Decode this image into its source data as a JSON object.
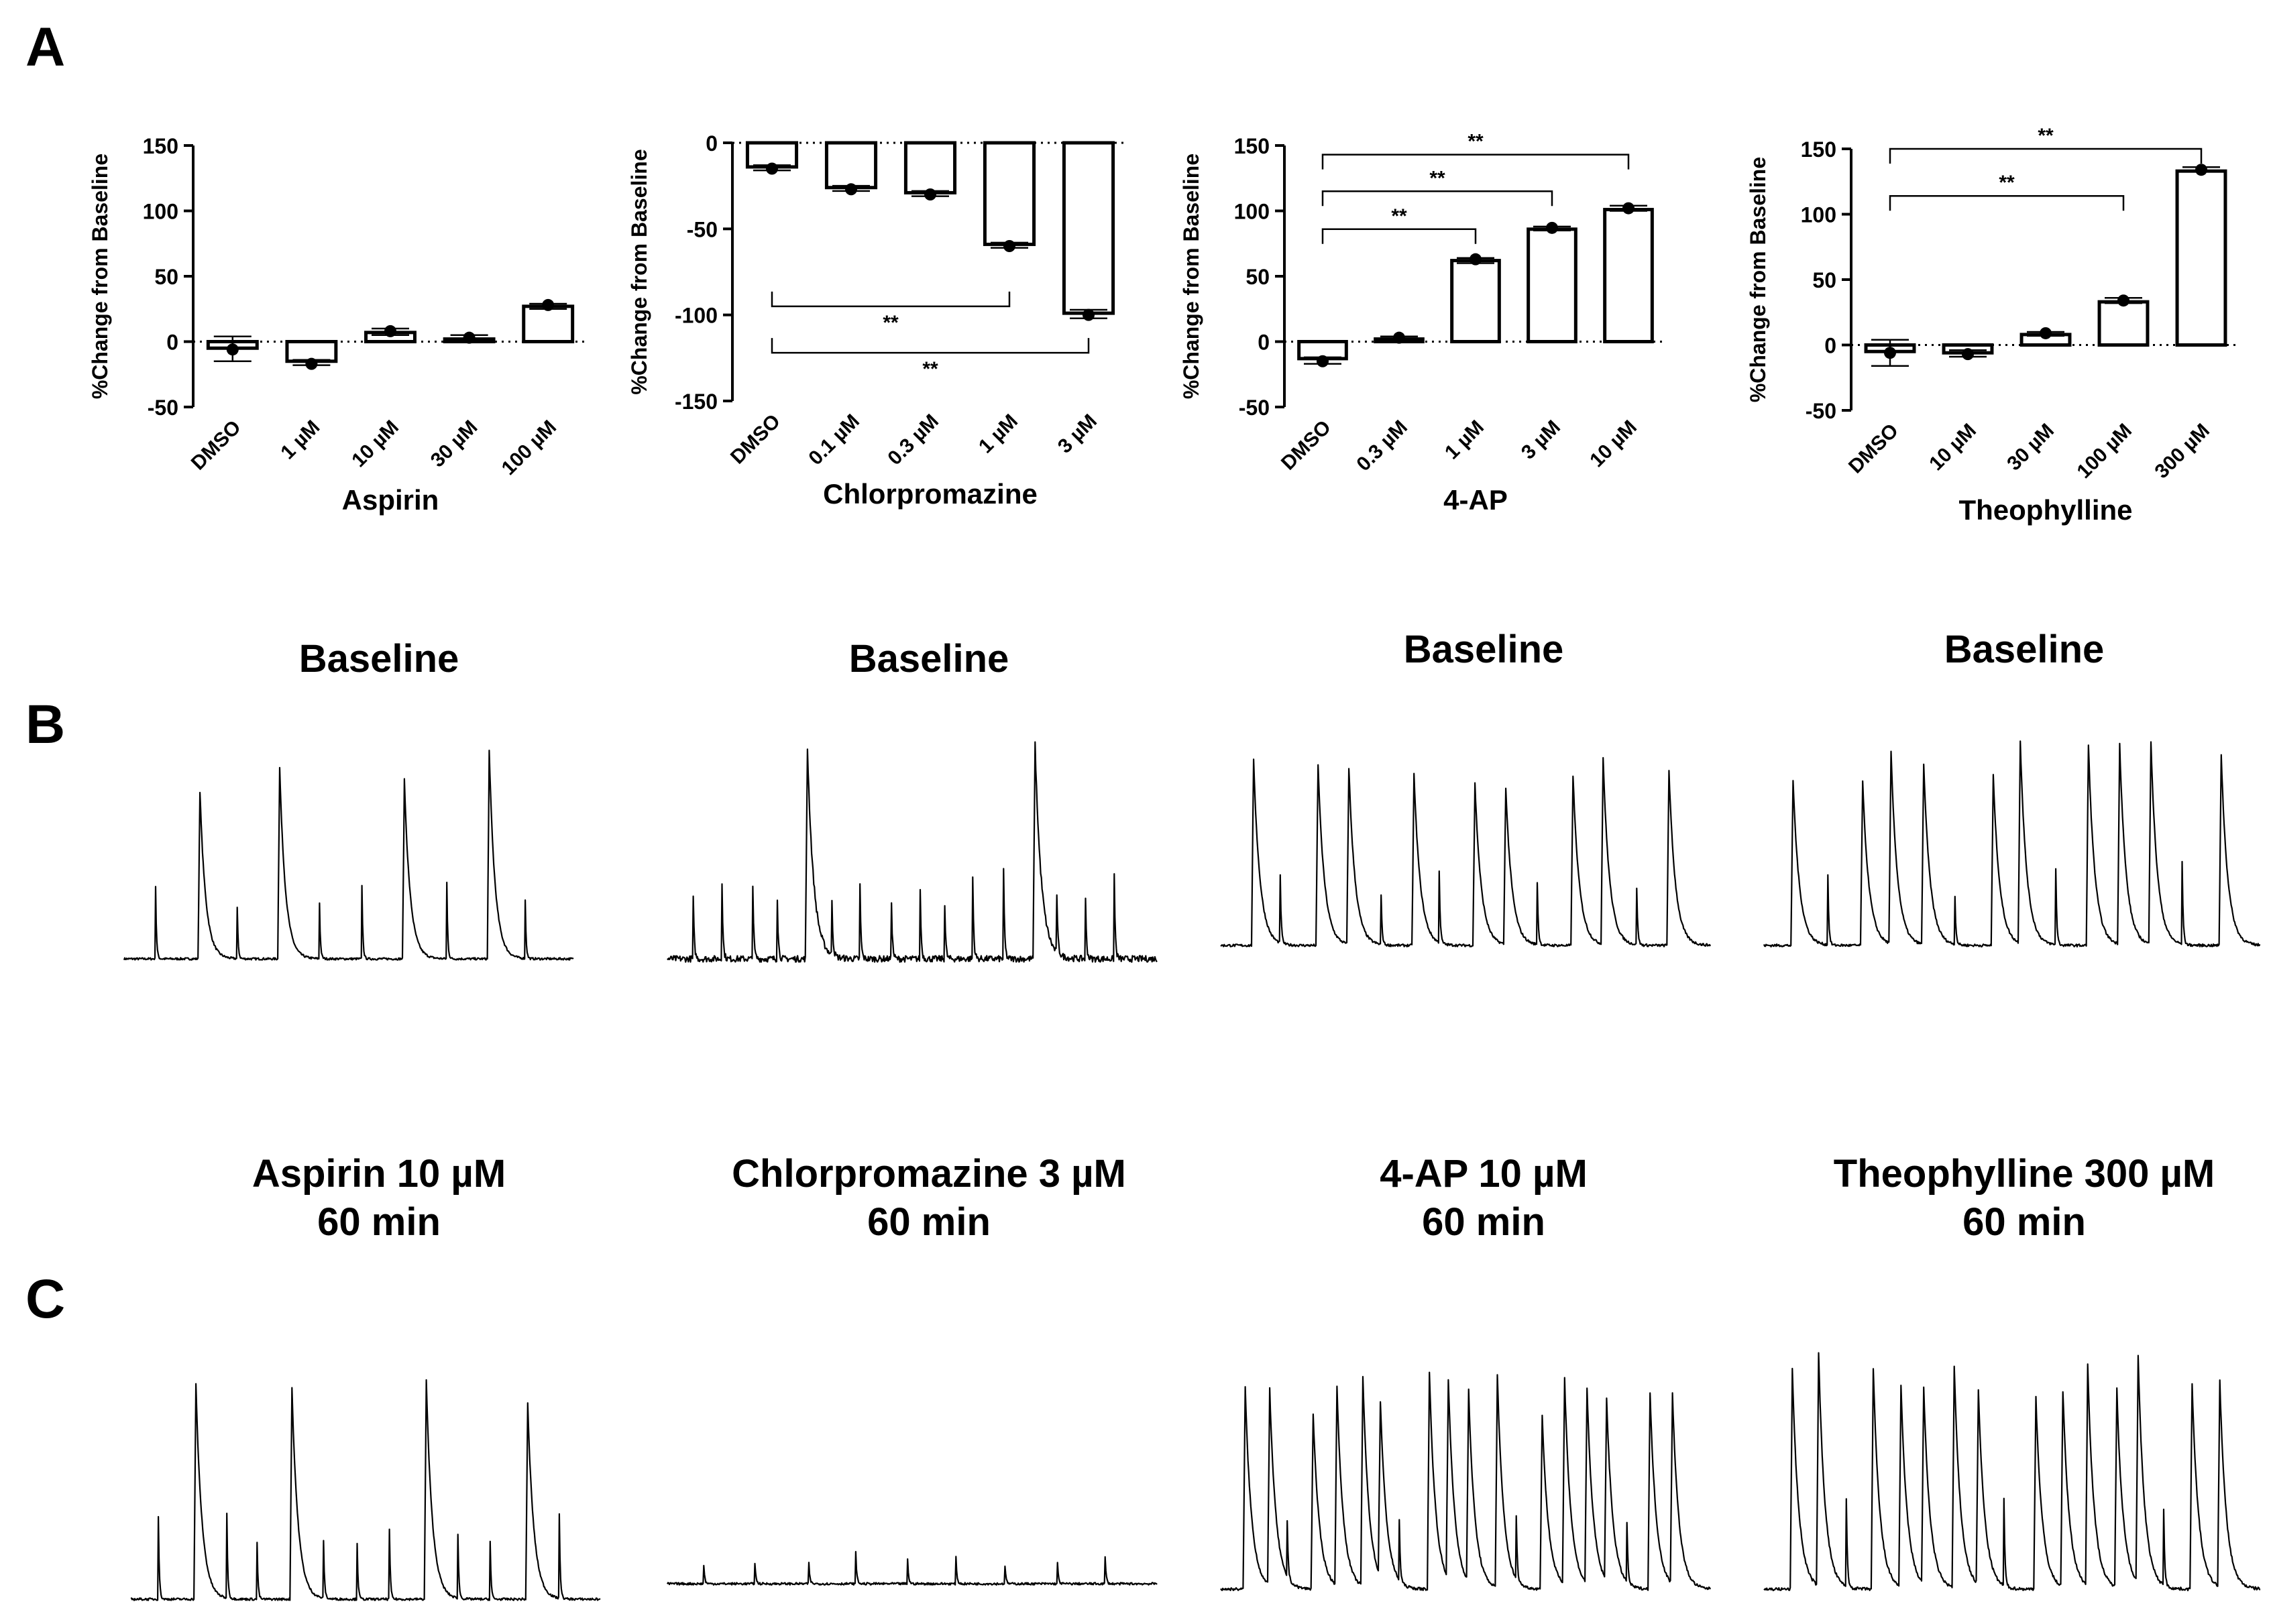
{
  "panels": {
    "A": "A",
    "B": "B",
    "C": "C"
  },
  "ylabel": "%Change from Baseline",
  "sig_label": "**",
  "colors": {
    "ink": "#000000",
    "background": "#ffffff"
  },
  "chart_data": [
    {
      "type": "bar",
      "title": "",
      "xlabel": "Aspirin",
      "ylabel": "%Change from Baseline",
      "categories": [
        "DMSO",
        "1 µM",
        "10 µM",
        "30 µM",
        "100 µM"
      ],
      "values": [
        -5,
        -15,
        7,
        2,
        27
      ],
      "points": [
        -6,
        -17,
        8,
        3,
        28
      ],
      "errors": [
        [
          -15,
          4
        ],
        [
          -18,
          -14
        ],
        [
          5,
          10
        ],
        [
          0,
          5
        ],
        [
          25,
          29
        ]
      ],
      "ylim": [
        -50,
        150
      ],
      "yticks": [
        -50,
        0,
        50,
        100,
        150
      ],
      "significance": []
    },
    {
      "type": "bar",
      "title": "",
      "xlabel": "Chlorpromazine",
      "ylabel": "%Change from Baseline",
      "categories": [
        "DMSO",
        "0.1 µM",
        "0.3 µM",
        "1 µM",
        "3 µM"
      ],
      "values": [
        -14,
        -26,
        -29,
        -59,
        -99
      ],
      "points": [
        -15,
        -27,
        -30,
        -60,
        -100
      ],
      "errors": [
        [
          -16,
          -13
        ],
        [
          -28,
          -25
        ],
        [
          -31,
          -28
        ],
        [
          -61,
          -58
        ],
        [
          -102,
          -97
        ]
      ],
      "ylim": [
        -150,
        0
      ],
      "yticks": [
        -150,
        -100,
        -50,
        0
      ],
      "significance": [
        {
          "from": 0,
          "to": 3,
          "y": -95,
          "label": "**",
          "drop": "up"
        },
        {
          "from": 0,
          "to": 4,
          "y": -122,
          "label": "**",
          "drop": "up"
        }
      ]
    },
    {
      "type": "bar",
      "title": "",
      "xlabel": "4-AP",
      "ylabel": "%Change from Baseline",
      "categories": [
        "DMSO",
        "0.3 µM",
        "1 µM",
        "3 µM",
        "10 µM"
      ],
      "values": [
        -13,
        2,
        62,
        86,
        101
      ],
      "points": [
        -15,
        3,
        63,
        87,
        102
      ],
      "errors": [
        [
          -17,
          -12
        ],
        [
          1,
          4
        ],
        [
          60,
          64
        ],
        [
          85,
          88
        ],
        [
          100,
          104
        ]
      ],
      "ylim": [
        -50,
        150
      ],
      "yticks": [
        -50,
        0,
        50,
        100,
        150
      ],
      "significance": [
        {
          "from": 0,
          "to": 2,
          "y": 86,
          "label": "**",
          "drop": "down"
        },
        {
          "from": 0,
          "to": 3,
          "y": 115,
          "label": "**",
          "drop": "down"
        },
        {
          "from": 0,
          "to": 4,
          "y": 143,
          "label": "**",
          "drop": "down"
        }
      ]
    },
    {
      "type": "bar",
      "title": "",
      "xlabel": "Theophylline",
      "ylabel": "%Change from Baseline",
      "categories": [
        "DMSO",
        "10 µM",
        "30 µM",
        "100 µM",
        "300 µM"
      ],
      "values": [
        -5,
        -6,
        8,
        33,
        133
      ],
      "points": [
        -6,
        -7,
        9,
        34,
        134
      ],
      "errors": [
        [
          -16,
          4
        ],
        [
          -9,
          -4
        ],
        [
          7,
          10
        ],
        [
          32,
          36
        ],
        [
          133,
          136
        ]
      ],
      "ylim": [
        -50,
        150
      ],
      "yticks": [
        -50,
        0,
        50,
        100,
        150
      ],
      "significance": [
        {
          "from": 0,
          "to": 3,
          "y": 114,
          "label": "**",
          "drop": "down"
        },
        {
          "from": 0,
          "to": 4,
          "y": 150,
          "label": "**",
          "drop": "down"
        }
      ]
    }
  ],
  "traces": {
    "baseline": [
      {
        "title": "Baseline",
        "large_peaks": 4,
        "small_peaks": 6,
        "noise": 0.2
      },
      {
        "title": "Baseline",
        "large_peaks": 2,
        "small_peaks": 14,
        "noise": 1.0
      },
      {
        "title": "Baseline",
        "large_peaks": 9,
        "small_peaks": 5,
        "noise": 0.3
      },
      {
        "title": "Baseline",
        "large_peaks": 10,
        "small_peaks": 4,
        "noise": 0.3
      }
    ],
    "treated": [
      {
        "title_line1": "Aspirin 10 µM",
        "title_line2": "60 min",
        "large_peaks": 4,
        "small_peaks": 9,
        "noise": 0.2
      },
      {
        "title_line1": "Chlorpromazine 3 µM",
        "title_line2": "60 min",
        "large_peaks": 0,
        "small_peaks": 9,
        "noise": 1.0
      },
      {
        "title_line1": "4-AP 10 µM",
        "title_line2": "60 min",
        "large_peaks": 16,
        "small_peaks": 4,
        "noise": 0.3
      },
      {
        "title_line1": "Theophylline 300 µM",
        "title_line2": "60 min",
        "large_peaks": 14,
        "small_peaks": 3,
        "noise": 0.3
      }
    ]
  }
}
